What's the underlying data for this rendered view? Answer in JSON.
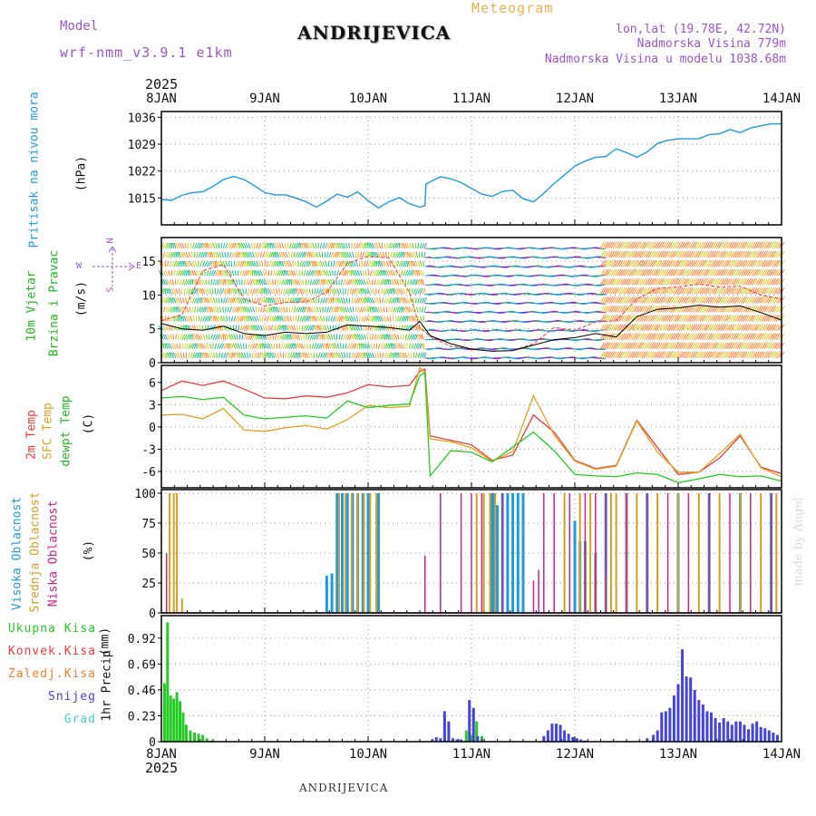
{
  "header": {
    "model_label": "Model",
    "model_name": "wrf-nmm_v3.9.1 e1km",
    "station": "ANDRIJEVICA",
    "meteogram": "Meteogram",
    "lonlat": "lon,lat (19.78E, 42.72N)",
    "elevation": "Nadmorska Visina 779m",
    "model_elevation": "Nadmorska Visina u modelu 1038.68m",
    "year_top": "2025",
    "year_bottom": "2025",
    "footer_station": "ANDRIJEVICA",
    "credit": "made by Angel"
  },
  "colors": {
    "pressure": "#1e9be0",
    "wind": "#22b422",
    "temp2m": "#ee3b3b",
    "sfc": "#e0a020",
    "dewpt": "#22cc22",
    "high_cloud": "#1e9be0",
    "mid_cloud": "#d4a020",
    "low_cloud": "#cc2288",
    "total_precip": "#22cc22",
    "conv_precip": "#ee3b3b",
    "frozen_precip": "#f08030",
    "snow": "#4444dd",
    "graupel": "#44cccc",
    "header_purple": "#9a55cc",
    "header_orange": "#e8b050"
  },
  "chart_data": [
    {
      "type": "line",
      "panel": "pressure",
      "ylabel": [
        "Pritisak na nivou mora",
        "(hPa)"
      ],
      "yticks": [
        1015,
        1022,
        1029,
        1036
      ],
      "ylim": [
        1008,
        1037.5
      ],
      "x_ticks": [
        "8JAN",
        "9JAN",
        "10JAN",
        "11JAN",
        "12JAN",
        "13JAN",
        "14JAN"
      ],
      "x": [
        0,
        0.1,
        0.2,
        0.3,
        0.4,
        0.5,
        0.6,
        0.7,
        0.8,
        0.9,
        1.0,
        1.1,
        1.2,
        1.3,
        1.4,
        1.5,
        1.6,
        1.7,
        1.8,
        1.9,
        2.0,
        2.1,
        2.2,
        2.3,
        2.4,
        2.5,
        2.55,
        2.56,
        2.6,
        2.7,
        2.8,
        2.9,
        3.0,
        3.1,
        3.2,
        3.3,
        3.4,
        3.5,
        3.6,
        3.7,
        3.8,
        3.9,
        4.0,
        4.1,
        4.2,
        4.3,
        4.4,
        4.5,
        4.6,
        4.7,
        4.8,
        4.9,
        5.0,
        5.1,
        5.2,
        5.3,
        5.4,
        5.5,
        5.6,
        5.7,
        5.8,
        5.9,
        6.0
      ],
      "series": [
        {
          "values": [
            1014.6,
            1014.4,
            1015.7,
            1016.4,
            1016.6,
            1018.0,
            1019.8,
            1020.6,
            1019.8,
            1018.2,
            1016.4,
            1015.8,
            1015.8,
            1015.0,
            1014.0,
            1012.6,
            1014.2,
            1016.0,
            1015.2,
            1016.6,
            1014.3,
            1012.4,
            1014.0,
            1015.1,
            1013.5,
            1012.6,
            1013.0,
            1018.6,
            1019.2,
            1020.5,
            1020.0,
            1019.0,
            1017.5,
            1016.0,
            1015.4,
            1016.7,
            1017.0,
            1014.8,
            1014.0,
            1016.2,
            1018.8,
            1021.0,
            1023.3,
            1024.6,
            1025.6,
            1025.8,
            1027.8,
            1026.8,
            1025.6,
            1027.0,
            1029.2,
            1030.0,
            1030.4,
            1030.4,
            1030.4,
            1031.5,
            1031.7,
            1032.8,
            1032.0,
            1033.2,
            1033.8,
            1034.3,
            1034.3
          ]
        }
      ]
    },
    {
      "type": "line",
      "panel": "wind",
      "ylabel": [
        "10m Vjetar",
        "Brzina i Pravac",
        "(m/s)"
      ],
      "direction_legend": [
        "N",
        "E",
        "W",
        "S"
      ],
      "yticks": [
        0,
        5,
        10,
        15
      ],
      "ylim": [
        0,
        18.5
      ],
      "x": [
        0,
        0.2,
        0.4,
        0.6,
        0.8,
        1.0,
        1.2,
        1.4,
        1.6,
        1.8,
        2.0,
        2.2,
        2.4,
        2.5,
        2.6,
        2.8,
        3.0,
        3.2,
        3.4,
        3.6,
        3.8,
        4.0,
        4.2,
        4.4,
        4.6,
        4.8,
        5.0,
        5.2,
        5.4,
        5.6,
        5.8,
        6.0
      ],
      "series": [
        {
          "name": "speed",
          "values": [
            5.8,
            5.0,
            4.8,
            5.4,
            4.3,
            4.0,
            4.5,
            4.3,
            4.5,
            5.6,
            5.4,
            5.2,
            4.8,
            6.1,
            4.0,
            2.8,
            2.0,
            1.7,
            1.8,
            2.6,
            3.4,
            3.7,
            4.3,
            3.8,
            6.8,
            7.9,
            8.1,
            8.5,
            8.2,
            8.4,
            7.4,
            6.3
          ]
        },
        {
          "name": "gust",
          "values": [
            6.2,
            7.1,
            13.6,
            14.5,
            9.4,
            8.4,
            8.9,
            9.0,
            10.4,
            14.7,
            15.7,
            15.5,
            10.4,
            5.2,
            3.9,
            2.4,
            2.1,
            1.7,
            1.8,
            2.8,
            5.2,
            4.8,
            6.0,
            6.2,
            9.4,
            11.0,
            11.2,
            11.6,
            11.2,
            11.3,
            10.0,
            9.4
          ]
        }
      ]
    },
    {
      "type": "line",
      "panel": "temperature",
      "ylabel": [
        "2m Temp",
        "SFC Temp",
        "dewpt Temp",
        "(C)"
      ],
      "yticks": [
        -6,
        -3,
        0,
        3,
        6
      ],
      "ylim": [
        -8.2,
        8.3
      ],
      "x": [
        0,
        0.2,
        0.4,
        0.6,
        0.8,
        1.0,
        1.2,
        1.4,
        1.6,
        1.8,
        2.0,
        2.2,
        2.4,
        2.5,
        2.55,
        2.6,
        2.8,
        3.0,
        3.2,
        3.4,
        3.6,
        3.8,
        4.0,
        4.2,
        4.4,
        4.6,
        4.8,
        5.0,
        5.2,
        5.4,
        5.6,
        5.8,
        6.0
      ],
      "series": [
        {
          "name": "2m Temp",
          "values": [
            4.9,
            6.2,
            5.6,
            6.2,
            5.1,
            3.9,
            3.8,
            4.2,
            4.0,
            4.6,
            5.7,
            5.4,
            5.6,
            7.5,
            7.8,
            -1.2,
            -1.8,
            -2.4,
            -4.5,
            -3.8,
            1.6,
            -0.7,
            -4.5,
            -5.6,
            -5.2,
            0.9,
            -2.8,
            -6.4,
            -6.1,
            -4.2,
            -1.2,
            -5.4,
            -6.3
          ]
        },
        {
          "name": "SFC Temp",
          "values": [
            1.6,
            1.7,
            1.1,
            2.5,
            -0.4,
            -0.6,
            -0.1,
            0.2,
            -0.3,
            1.0,
            2.9,
            2.6,
            2.8,
            8.0,
            7.2,
            -1.6,
            -2.0,
            -2.8,
            -4.6,
            -3.3,
            4.2,
            -1.1,
            -4.6,
            -5.7,
            -5.3,
            0.8,
            -3.4,
            -6.1,
            -6.1,
            -3.6,
            -1.0,
            -5.5,
            -6.7
          ]
        },
        {
          "name": "dewpt Temp",
          "values": [
            3.9,
            4.1,
            3.7,
            4.0,
            1.6,
            1.1,
            1.3,
            1.5,
            1.2,
            3.5,
            2.6,
            2.9,
            3.1,
            6.9,
            7.3,
            -6.6,
            -3.2,
            -3.4,
            -4.7,
            -2.7,
            -0.7,
            -3.2,
            -6.4,
            -6.6,
            -6.7,
            -6.2,
            -6.4,
            -7.5,
            -7.0,
            -6.4,
            -6.7,
            -6.6,
            -7.3
          ]
        }
      ]
    },
    {
      "type": "bar",
      "panel": "cloud",
      "ylabel": [
        "Visoka Oblacnost",
        "Srednja Oblacnost",
        "Niska Oblacnost",
        "(%)"
      ],
      "yticks": [
        0,
        25,
        50,
        75,
        100
      ],
      "ylim": [
        0,
        103
      ],
      "series": [
        {
          "name": "Visoka Oblacnost",
          "x": [
            1.6,
            1.65,
            1.7,
            1.75,
            1.8,
            1.85,
            1.9,
            1.95,
            2.0,
            2.1,
            3.2,
            3.22,
            3.25,
            3.3,
            3.35,
            3.4,
            3.45,
            3.5,
            4.0,
            4.05,
            4.1,
            4.2,
            4.3,
            4.5,
            4.7,
            5.0,
            5.3,
            5.6,
            5.9
          ],
          "values": [
            31,
            33,
            100,
            100,
            100,
            100,
            100,
            100,
            100,
            100,
            100,
            100,
            90,
            100,
            100,
            100,
            100,
            100,
            77,
            60,
            60,
            50,
            100,
            100,
            100,
            100,
            100,
            100,
            100
          ]
        },
        {
          "name": "Srednja Oblacnost",
          "x": [
            0.08,
            0.12,
            0.15,
            0.2,
            1.72,
            1.78,
            1.84,
            1.9,
            1.96,
            2.02,
            2.08,
            3.05,
            3.12,
            3.18,
            3.23,
            3.9,
            4.05,
            4.1,
            4.15,
            4.2,
            4.3,
            4.35,
            4.4,
            4.5,
            4.6,
            4.8,
            5.0,
            5.2,
            5.4,
            5.6,
            5.8,
            5.95
          ],
          "values": [
            100,
            100,
            100,
            12,
            100,
            100,
            100,
            100,
            100,
            100,
            100,
            100,
            100,
            100,
            100,
            100,
            100,
            56,
            100,
            50,
            30,
            100,
            100,
            100,
            100,
            100,
            100,
            100,
            100,
            100,
            100,
            100
          ]
        },
        {
          "name": "Niska Oblacnost",
          "x": [
            0.05,
            2.55,
            2.7,
            2.9,
            3.0,
            3.1,
            3.3,
            3.6,
            3.65,
            3.7,
            3.8,
            3.95,
            4.1,
            4.2,
            4.3,
            4.5,
            4.7,
            4.9,
            5.1,
            5.3,
            5.5,
            5.7,
            5.9
          ],
          "values": [
            50,
            48,
            100,
            100,
            100,
            100,
            100,
            27,
            36,
            100,
            100,
            100,
            100,
            100,
            100,
            100,
            100,
            100,
            100,
            100,
            100,
            100,
            100
          ]
        }
      ]
    },
    {
      "type": "bar",
      "panel": "precipitation",
      "ylabel": [
        "1hr Precip",
        "(mm)"
      ],
      "legend": [
        "Ukupna Kisa",
        "Konvek.Kisa",
        "Zaledj.Kisa",
        "Snijeg",
        "Grad"
      ],
      "yticks": [
        0,
        0.23,
        0.46,
        0.69,
        0.92
      ],
      "ylim": [
        0,
        1.12
      ],
      "series": [
        {
          "name": "Ukupna Kisa",
          "x": [
            0.03,
            0.06,
            0.09,
            0.12,
            0.15,
            0.18,
            0.21,
            0.24,
            0.28,
            0.32,
            0.36,
            0.4,
            0.44,
            0.48,
            2.95,
            3.0,
            3.05,
            3.1
          ],
          "values": [
            0.52,
            1.06,
            0.41,
            0.38,
            0.44,
            0.36,
            0.26,
            0.15,
            0.1,
            0.08,
            0.07,
            0.06,
            0.03,
            0.01,
            0.1,
            0.06,
            0.18,
            0.05
          ]
        },
        {
          "name": "Snijeg",
          "x": [
            2.62,
            2.66,
            2.7,
            2.74,
            2.78,
            2.82,
            2.86,
            2.9,
            2.98,
            3.02,
            3.06,
            3.1,
            3.7,
            3.74,
            3.78,
            3.82,
            3.86,
            3.9,
            3.94,
            3.98,
            4.02,
            4.06,
            4.1,
            4.7,
            4.76,
            4.8,
            4.84,
            4.88,
            4.92,
            4.96,
            5.0,
            5.04,
            5.08,
            5.12,
            5.16,
            5.2,
            5.24,
            5.28,
            5.32,
            5.36,
            5.4,
            5.44,
            5.48,
            5.52,
            5.56,
            5.6,
            5.64,
            5.68,
            5.72,
            5.76,
            5.8,
            5.84,
            5.88,
            5.92,
            5.96
          ],
          "values": [
            0.02,
            0.04,
            0.03,
            0.27,
            0.18,
            0.03,
            0.02,
            0.02,
            0.37,
            0.3,
            0.05,
            0.02,
            0.05,
            0.1,
            0.16,
            0.16,
            0.15,
            0.1,
            0.07,
            0.04,
            0.03,
            0.02,
            0.01,
            0.03,
            0.06,
            0.1,
            0.26,
            0.27,
            0.3,
            0.41,
            0.51,
            0.82,
            0.58,
            0.57,
            0.46,
            0.37,
            0.33,
            0.27,
            0.26,
            0.21,
            0.17,
            0.21,
            0.18,
            0.15,
            0.18,
            0.18,
            0.15,
            0.11,
            0.16,
            0.18,
            0.13,
            0.12,
            0.1,
            0.08,
            0.06
          ]
        }
      ]
    }
  ]
}
